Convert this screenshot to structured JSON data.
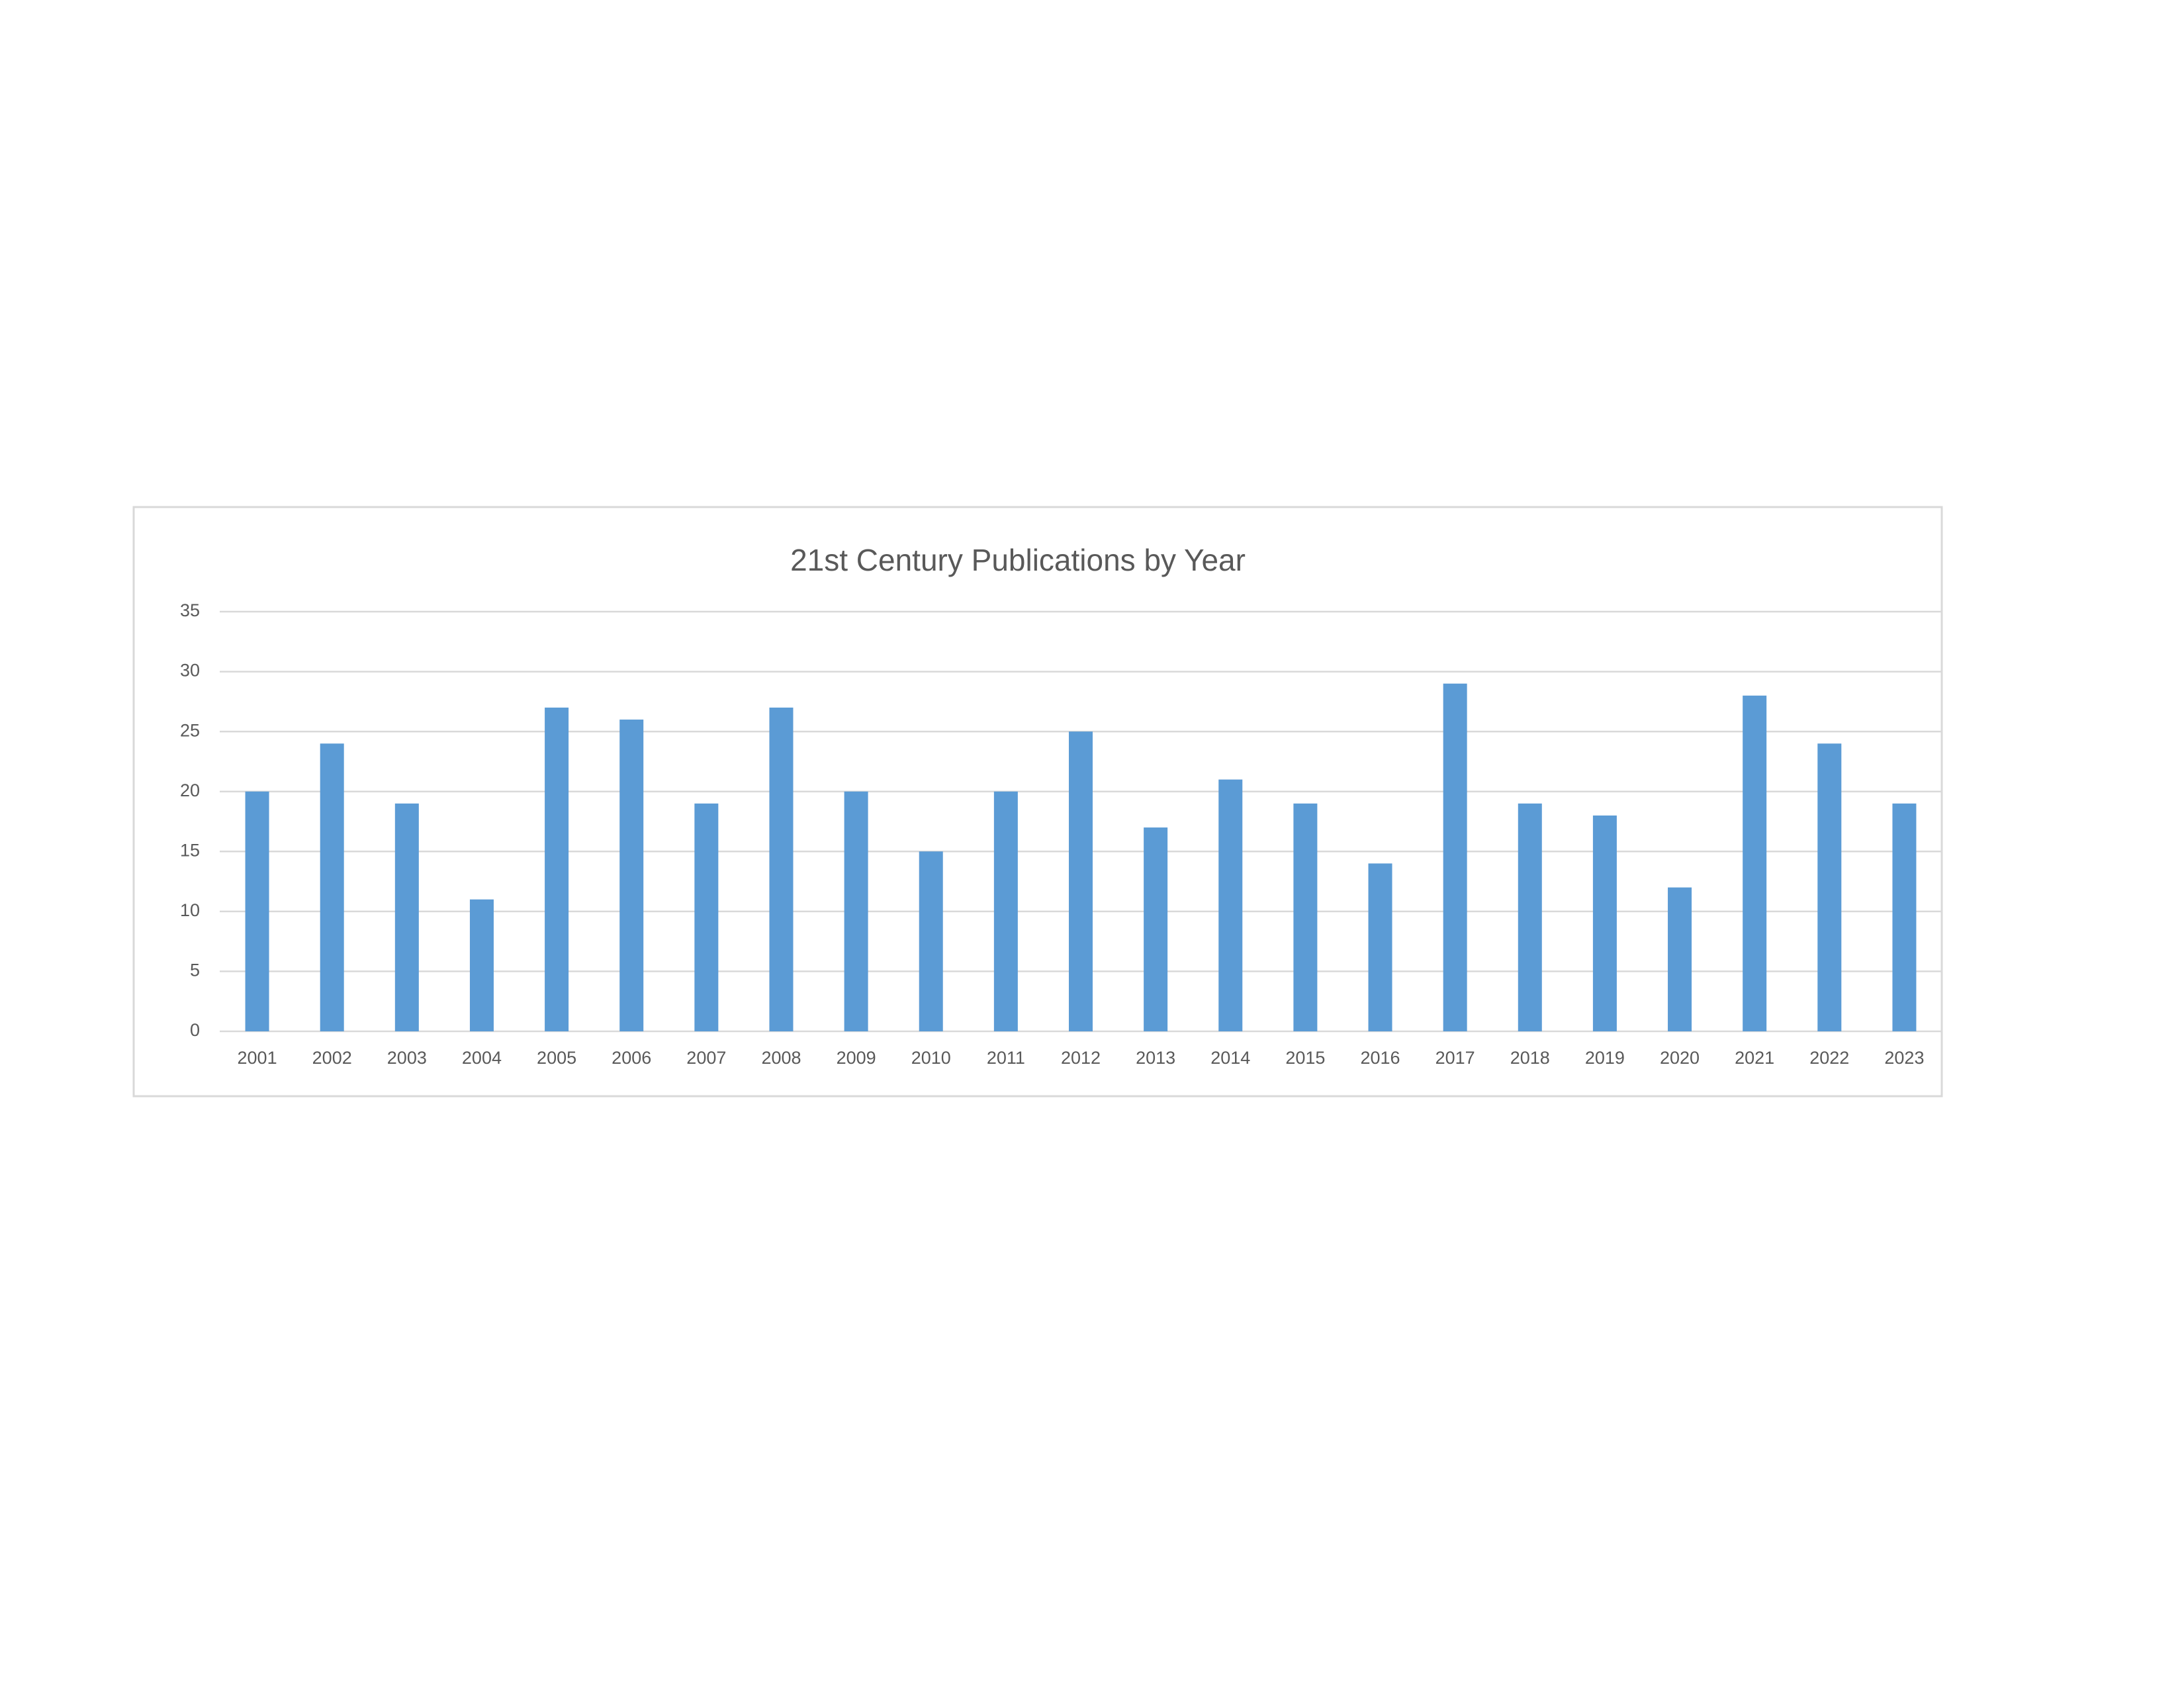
{
  "chart_data": {
    "type": "bar",
    "title": "21st Century Publications by Year",
    "categories": [
      "2001",
      "2002",
      "2003",
      "2004",
      "2005",
      "2006",
      "2007",
      "2008",
      "2009",
      "2010",
      "2011",
      "2012",
      "2013",
      "2014",
      "2015",
      "2016",
      "2017",
      "2018",
      "2019",
      "2020",
      "2021",
      "2022",
      "2023"
    ],
    "values": [
      20,
      24,
      19,
      11,
      27,
      26,
      19,
      27,
      20,
      15,
      20,
      25,
      17,
      21,
      19,
      14,
      29,
      19,
      18,
      12,
      28,
      24,
      19
    ],
    "color": "#5b9bd5",
    "ylim": [
      0,
      35
    ],
    "yticks": [
      0,
      5,
      10,
      15,
      20,
      25,
      30,
      35
    ],
    "grid": true
  }
}
